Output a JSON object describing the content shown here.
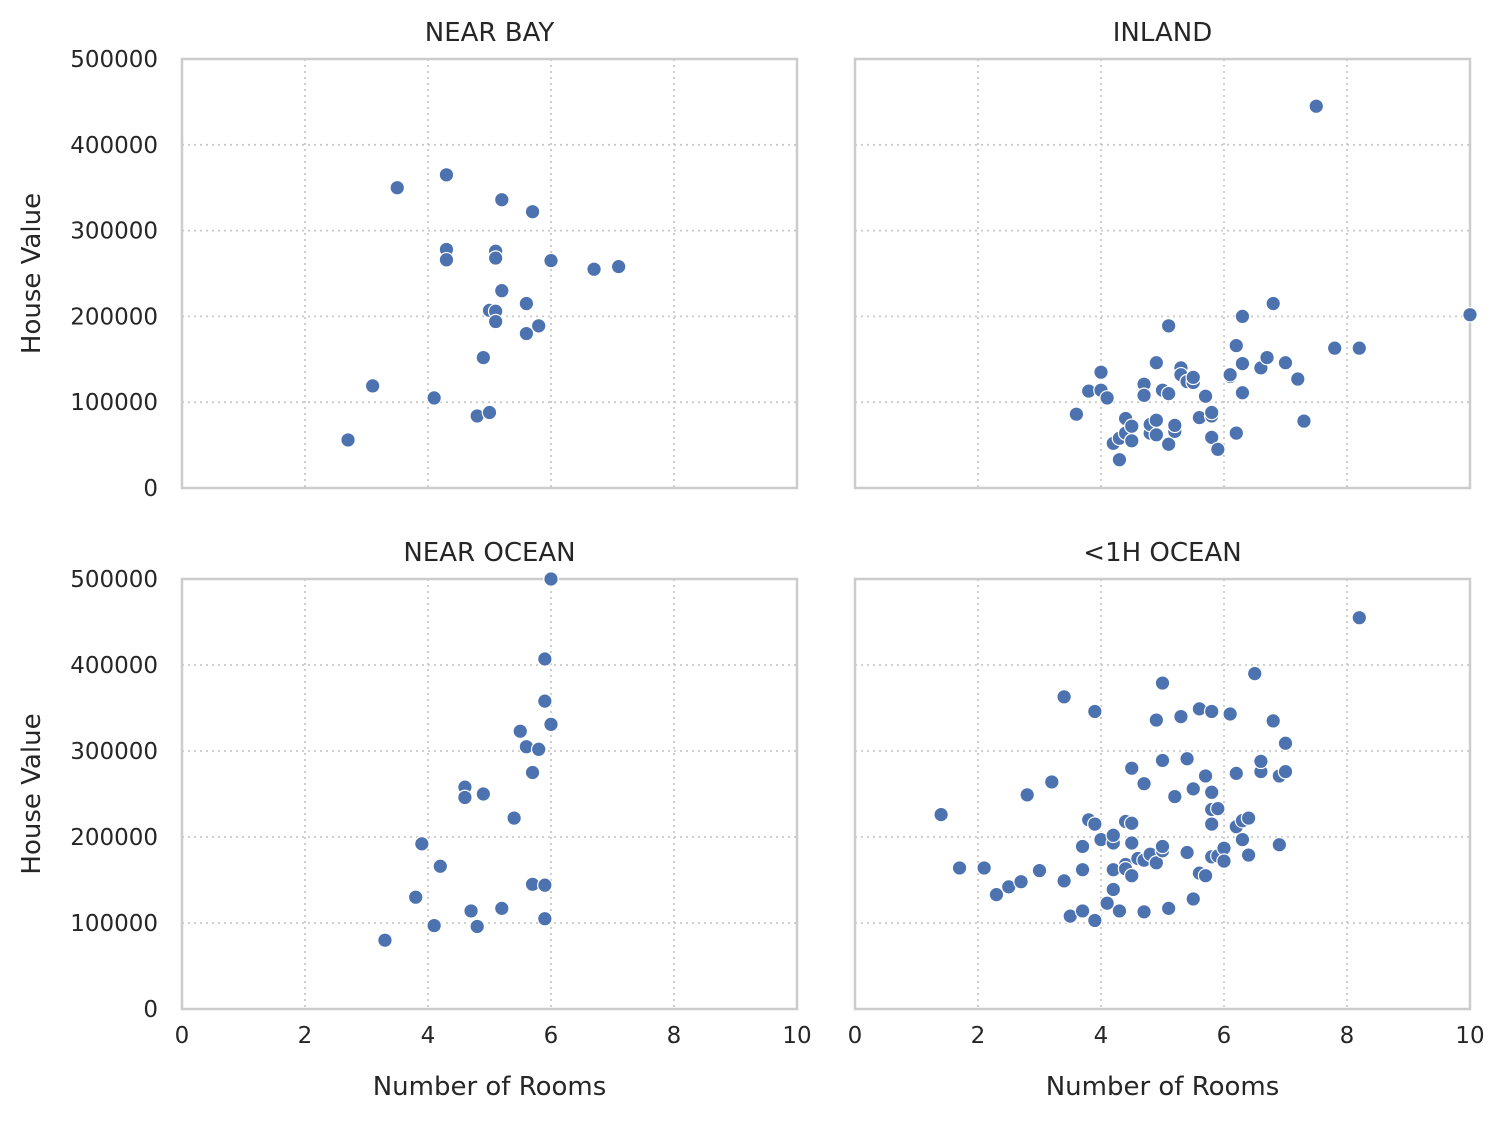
{
  "chart_data": {
    "type": "scatter",
    "xlabel": "Number of Rooms",
    "ylabel": "House Value",
    "xlim": [
      0,
      10
    ],
    "ylim": [
      0,
      500000
    ],
    "xticks": [
      "0",
      "2",
      "4",
      "6",
      "8",
      "10"
    ],
    "yticks": [
      "0",
      "100000",
      "200000",
      "300000",
      "400000",
      "500000"
    ],
    "grid": true,
    "color": "#4c72b0",
    "panels": [
      {
        "title": "NEAR BAY",
        "points": [
          [
            2.7,
            56000
          ],
          [
            3.1,
            119000
          ],
          [
            3.5,
            350000
          ],
          [
            4.1,
            105000
          ],
          [
            4.3,
            278000
          ],
          [
            4.3,
            266000
          ],
          [
            4.3,
            365000
          ],
          [
            4.8,
            84000
          ],
          [
            4.9,
            152000
          ],
          [
            5.0,
            88000
          ],
          [
            5.0,
            207000
          ],
          [
            5.1,
            276000
          ],
          [
            5.1,
            268000
          ],
          [
            5.1,
            206000
          ],
          [
            5.1,
            194000
          ],
          [
            5.2,
            336000
          ],
          [
            5.2,
            230000
          ],
          [
            5.6,
            215000
          ],
          [
            5.6,
            180000
          ],
          [
            5.7,
            322000
          ],
          [
            5.8,
            189000
          ],
          [
            6.0,
            265000
          ],
          [
            6.7,
            255000
          ],
          [
            7.1,
            258000
          ]
        ]
      },
      {
        "title": "INLAND",
        "points": [
          [
            3.6,
            86000
          ],
          [
            3.8,
            113000
          ],
          [
            4.0,
            114000
          ],
          [
            4.0,
            135000
          ],
          [
            4.1,
            105000
          ],
          [
            4.2,
            52000
          ],
          [
            4.3,
            33000
          ],
          [
            4.3,
            58000
          ],
          [
            4.4,
            64000
          ],
          [
            4.4,
            81000
          ],
          [
            4.5,
            55000
          ],
          [
            4.5,
            72000
          ],
          [
            4.7,
            121000
          ],
          [
            4.7,
            108000
          ],
          [
            4.8,
            64000
          ],
          [
            4.8,
            74000
          ],
          [
            4.9,
            79000
          ],
          [
            4.9,
            62000
          ],
          [
            4.9,
            146000
          ],
          [
            5.0,
            114000
          ],
          [
            5.1,
            110000
          ],
          [
            5.1,
            189000
          ],
          [
            5.1,
            51000
          ],
          [
            5.2,
            66000
          ],
          [
            5.2,
            73000
          ],
          [
            5.3,
            140000
          ],
          [
            5.3,
            132000
          ],
          [
            5.4,
            124000
          ],
          [
            5.5,
            123000
          ],
          [
            5.5,
            129000
          ],
          [
            5.6,
            82000
          ],
          [
            5.7,
            107000
          ],
          [
            5.8,
            84000
          ],
          [
            5.8,
            88000
          ],
          [
            5.8,
            59000
          ],
          [
            5.9,
            45000
          ],
          [
            6.1,
            130000
          ],
          [
            6.1,
            132000
          ],
          [
            6.2,
            166000
          ],
          [
            6.2,
            64000
          ],
          [
            6.3,
            200000
          ],
          [
            6.3,
            145000
          ],
          [
            6.3,
            111000
          ],
          [
            6.6,
            140000
          ],
          [
            6.7,
            152000
          ],
          [
            6.8,
            215000
          ],
          [
            7.0,
            146000
          ],
          [
            7.2,
            127000
          ],
          [
            7.3,
            78000
          ],
          [
            7.5,
            445000
          ],
          [
            7.8,
            163000
          ],
          [
            8.2,
            163000
          ],
          [
            10.0,
            202000
          ]
        ]
      },
      {
        "title": "NEAR OCEAN",
        "points": [
          [
            3.3,
            80000
          ],
          [
            3.8,
            130000
          ],
          [
            3.9,
            192000
          ],
          [
            4.1,
            97000
          ],
          [
            4.2,
            166000
          ],
          [
            4.6,
            258000
          ],
          [
            4.6,
            246000
          ],
          [
            4.7,
            114000
          ],
          [
            4.8,
            96000
          ],
          [
            4.9,
            250000
          ],
          [
            5.2,
            117000
          ],
          [
            5.4,
            222000
          ],
          [
            5.5,
            323000
          ],
          [
            5.6,
            305000
          ],
          [
            5.7,
            275000
          ],
          [
            5.7,
            145000
          ],
          [
            5.8,
            302000
          ],
          [
            5.9,
            105000
          ],
          [
            5.9,
            144000
          ],
          [
            5.9,
            407000
          ],
          [
            5.9,
            358000
          ],
          [
            6.0,
            331000
          ],
          [
            6.0,
            500000
          ]
        ]
      },
      {
        "title": "<1H OCEAN",
        "points": [
          [
            1.4,
            226000
          ],
          [
            1.7,
            164000
          ],
          [
            2.1,
            164000
          ],
          [
            2.3,
            133000
          ],
          [
            2.5,
            142000
          ],
          [
            2.7,
            148000
          ],
          [
            2.8,
            249000
          ],
          [
            3.0,
            161000
          ],
          [
            3.2,
            264000
          ],
          [
            3.4,
            363000
          ],
          [
            3.4,
            149000
          ],
          [
            3.5,
            108000
          ],
          [
            3.7,
            114000
          ],
          [
            3.7,
            162000
          ],
          [
            3.7,
            189000
          ],
          [
            3.8,
            220000
          ],
          [
            3.9,
            103000
          ],
          [
            3.9,
            346000
          ],
          [
            3.9,
            215000
          ],
          [
            4.0,
            197000
          ],
          [
            4.1,
            123000
          ],
          [
            4.2,
            193000
          ],
          [
            4.2,
            202000
          ],
          [
            4.2,
            162000
          ],
          [
            4.2,
            139000
          ],
          [
            4.3,
            114000
          ],
          [
            4.4,
            218000
          ],
          [
            4.4,
            168000
          ],
          [
            4.4,
            163000
          ],
          [
            4.5,
            155000
          ],
          [
            4.5,
            216000
          ],
          [
            4.5,
            280000
          ],
          [
            4.5,
            193000
          ],
          [
            4.6,
            175000
          ],
          [
            4.7,
            173000
          ],
          [
            4.7,
            113000
          ],
          [
            4.7,
            262000
          ],
          [
            4.8,
            180000
          ],
          [
            4.9,
            170000
          ],
          [
            4.9,
            336000
          ],
          [
            5.0,
            184000
          ],
          [
            5.0,
            189000
          ],
          [
            5.0,
            289000
          ],
          [
            5.0,
            379000
          ],
          [
            5.1,
            117000
          ],
          [
            5.2,
            247000
          ],
          [
            5.3,
            340000
          ],
          [
            5.4,
            291000
          ],
          [
            5.4,
            182000
          ],
          [
            5.5,
            128000
          ],
          [
            5.5,
            256000
          ],
          [
            5.6,
            349000
          ],
          [
            5.6,
            158000
          ],
          [
            5.7,
            271000
          ],
          [
            5.7,
            155000
          ],
          [
            5.8,
            232000
          ],
          [
            5.8,
            346000
          ],
          [
            5.8,
            177000
          ],
          [
            5.8,
            215000
          ],
          [
            5.8,
            252000
          ],
          [
            5.9,
            178000
          ],
          [
            5.9,
            233000
          ],
          [
            6.0,
            187000
          ],
          [
            6.0,
            172000
          ],
          [
            6.1,
            343000
          ],
          [
            6.2,
            212000
          ],
          [
            6.2,
            274000
          ],
          [
            6.3,
            197000
          ],
          [
            6.3,
            219000
          ],
          [
            6.4,
            222000
          ],
          [
            6.4,
            179000
          ],
          [
            6.5,
            390000
          ],
          [
            6.6,
            276000
          ],
          [
            6.6,
            288000
          ],
          [
            6.8,
            335000
          ],
          [
            6.9,
            272000
          ],
          [
            6.9,
            191000
          ],
          [
            6.9,
            271000
          ],
          [
            7.0,
            309000
          ],
          [
            7.0,
            276000
          ],
          [
            8.2,
            455000
          ]
        ]
      }
    ]
  }
}
